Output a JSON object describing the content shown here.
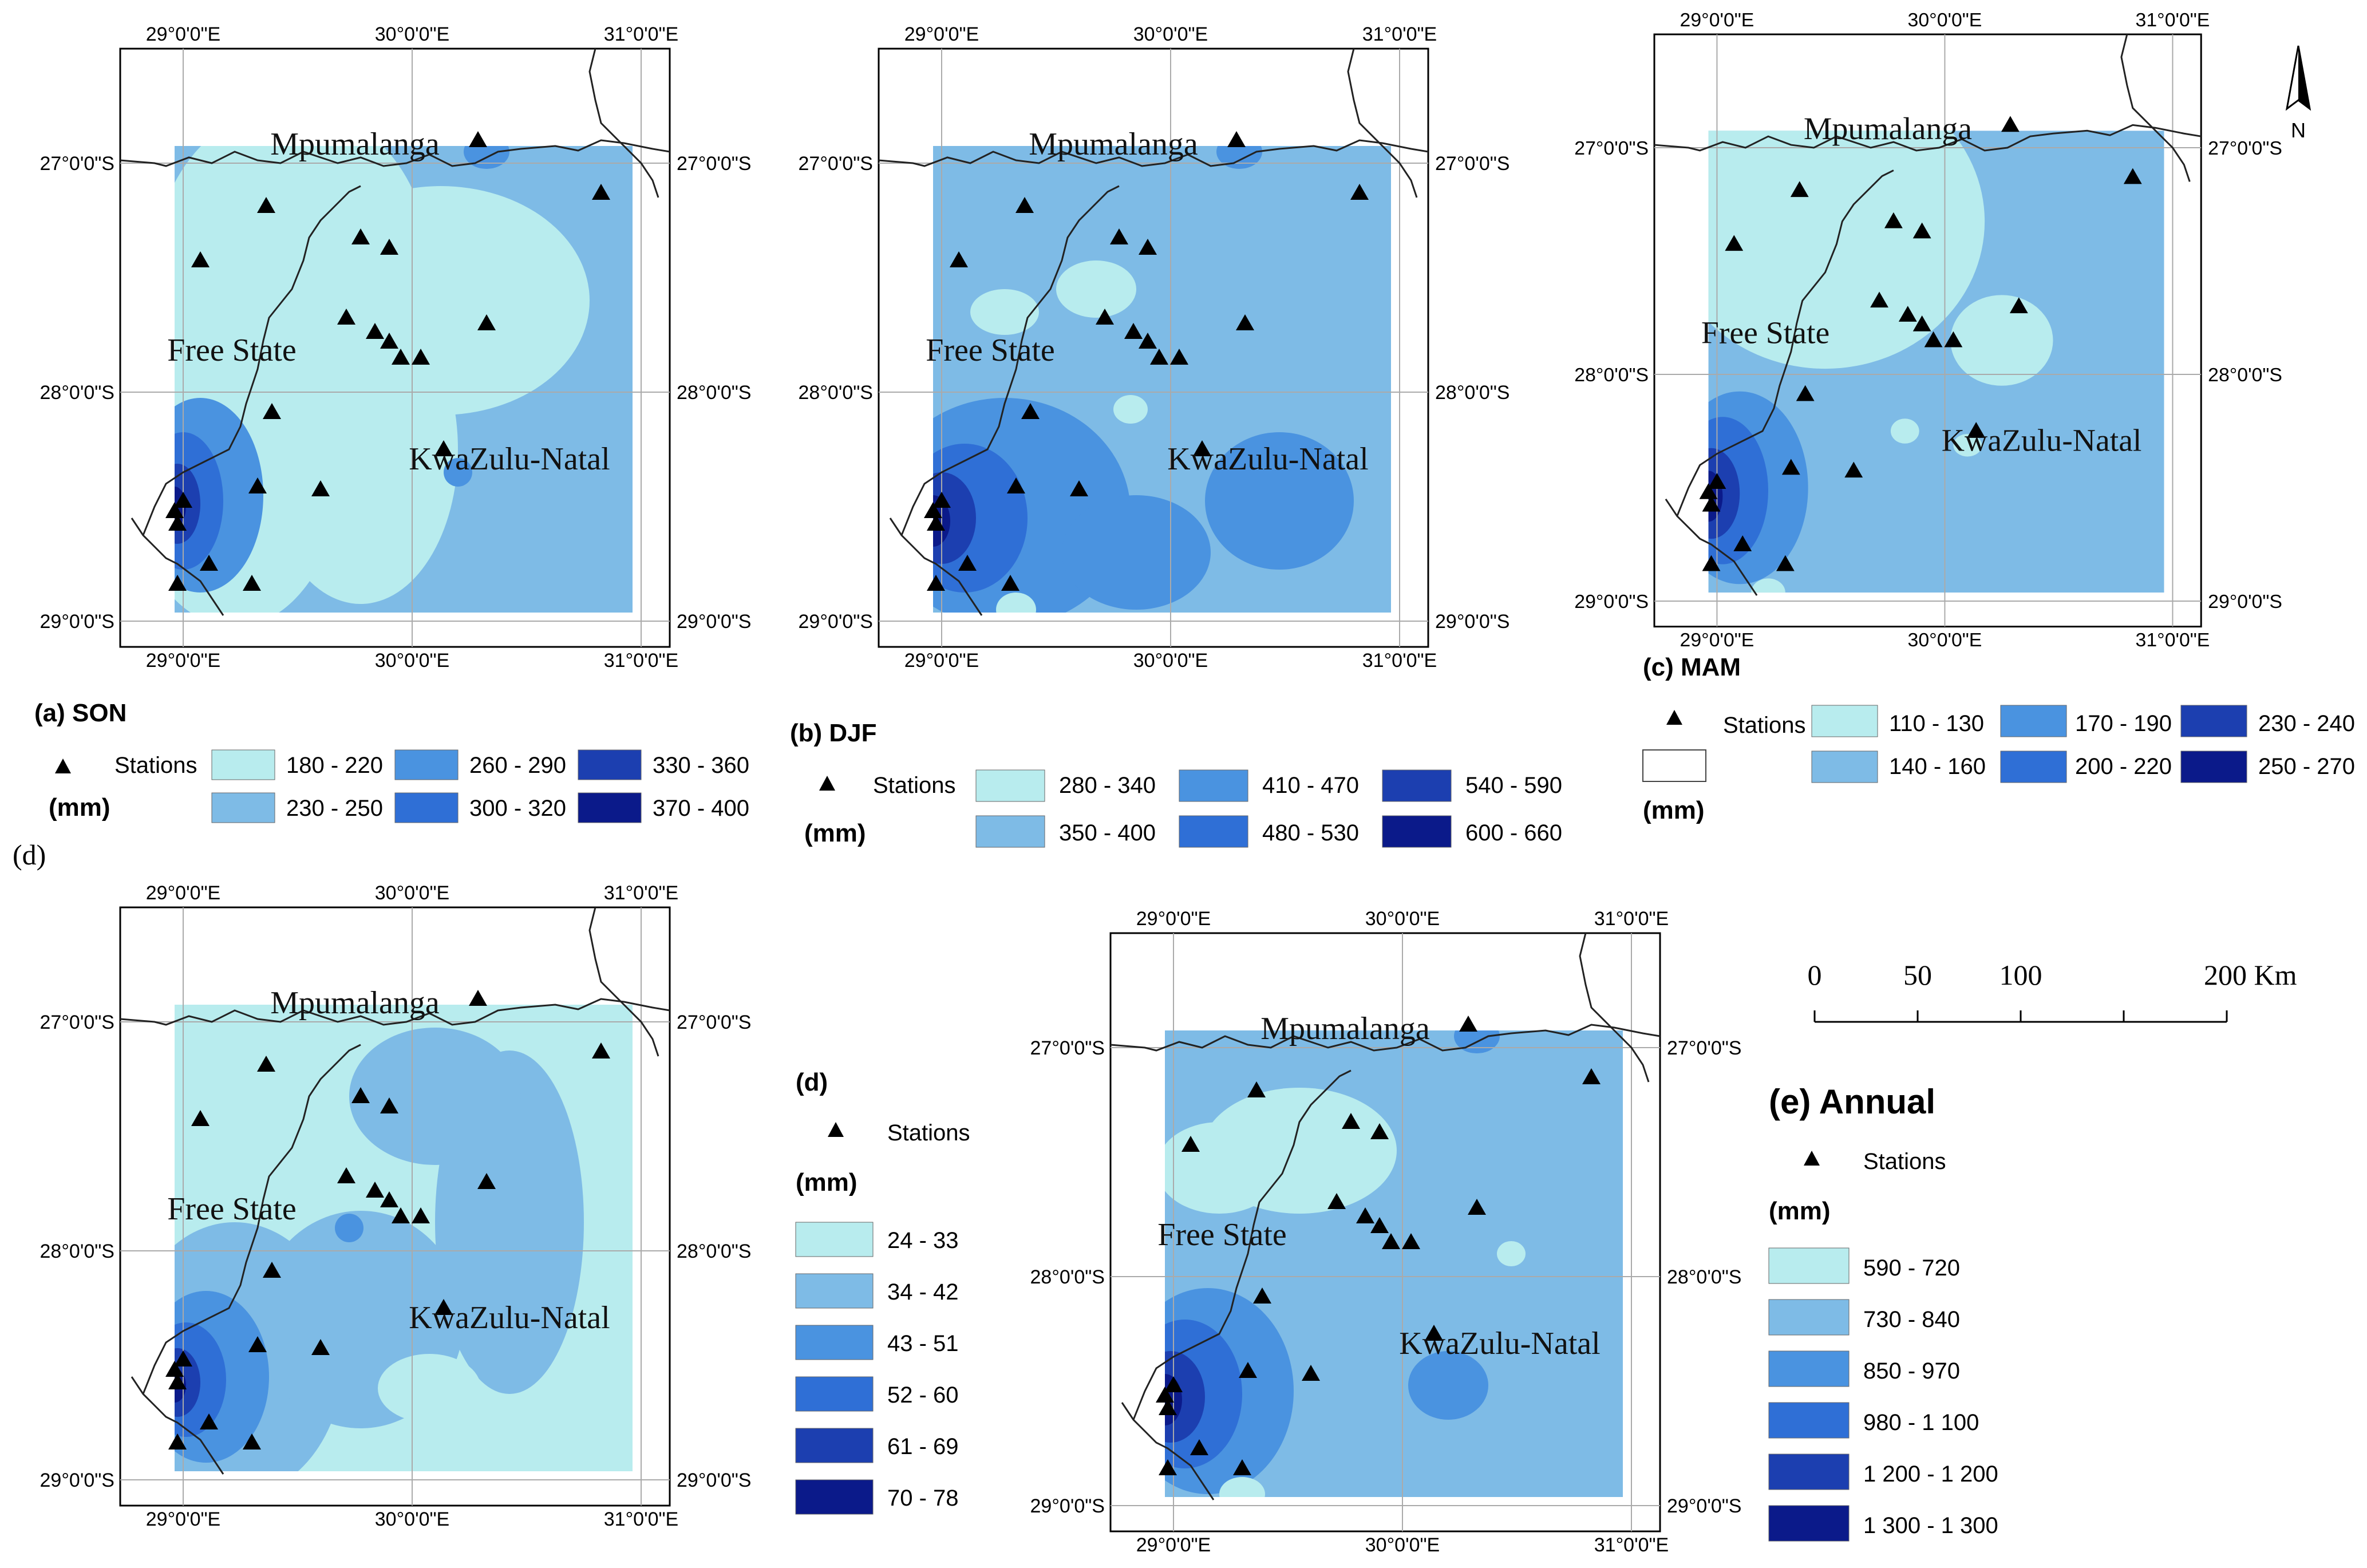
{
  "colors": {
    "c1": "#b8ecee",
    "c2": "#7ebbe6",
    "c3": "#4a93e0",
    "c4": "#2f6fd6",
    "c5": "#1c3fb0",
    "c6": "#0b1a8a",
    "boundary": "#222222",
    "grid": "#aaaaaa"
  },
  "labels": {
    "lon": [
      "29°0'0\"E",
      "30°0'0\"E",
      "31°0'0\"E"
    ],
    "lat": [
      "27°0'0\"S",
      "28°0'0\"S",
      "29°0'0\"S"
    ],
    "mpumalanga": "Mpumalanga",
    "free_state": "Free State",
    "kzn": "KwaZulu-Natal",
    "stations": "Stations",
    "mm": "(mm)",
    "stray_d": "(d)",
    "north": "N"
  },
  "panels": {
    "a": {
      "title": "(a) SON",
      "classes": [
        "180 - 220",
        "230 - 250",
        "260 - 290",
        "300 - 320",
        "330 - 360",
        "370 - 400"
      ]
    },
    "b": {
      "title": "(b) DJF",
      "classes": [
        "280 - 340",
        "350 - 400",
        "410 - 470",
        "480 - 530",
        "540 - 590",
        "600 - 660"
      ]
    },
    "c": {
      "title": "(c) MAM",
      "classes": [
        "110 - 130",
        "140 - 160",
        "170 - 190",
        "200 - 220",
        "230 - 240",
        "250 - 270"
      ]
    },
    "d": {
      "title": "(d)",
      "classes": [
        "24 - 33",
        "34 - 42",
        "43 - 51",
        "52 - 60",
        "61 - 69",
        "70 - 78"
      ]
    },
    "e": {
      "title": "(e) Annual",
      "classes": [
        "590 - 720",
        "730 - 840",
        "850 - 970",
        "980 - 1 100",
        "1 200 - 1 200",
        "1 300 - 1 300"
      ]
    }
  },
  "scale_bar": {
    "ticks": [
      "0",
      "50",
      "100",
      "200 Km"
    ]
  }
}
